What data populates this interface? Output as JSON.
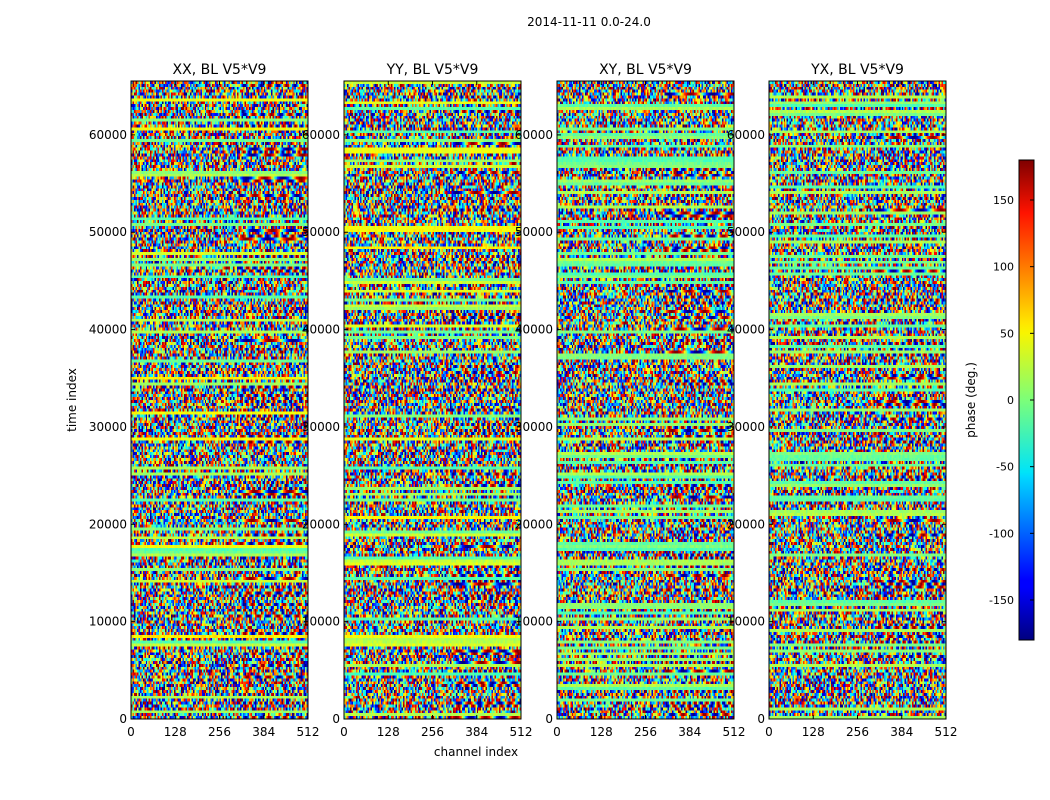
{
  "figure": {
    "suptitle": "2014-11-11 0.0-24.0",
    "xlabel": "channel index",
    "ylabel": "time index",
    "colorbar_label": "phase (deg.)"
  },
  "chart_data": {
    "type": "heatmap",
    "x": {
      "label": "channel index",
      "range": [
        0,
        512
      ],
      "ticks": [
        0,
        128,
        256,
        384,
        512
      ]
    },
    "y": {
      "label": "time index",
      "range": [
        0,
        65536
      ],
      "ticks": [
        0,
        10000,
        20000,
        30000,
        40000,
        50000,
        60000
      ]
    },
    "colorbar": {
      "label": "phase (deg.)",
      "range": [
        -180,
        180
      ],
      "ticks": [
        150,
        100,
        50,
        0,
        -50,
        -100,
        -150
      ],
      "colormap": "jet"
    },
    "panels": [
      {
        "id": "xx",
        "title": "XX, BL V5*V9"
      },
      {
        "id": "yy",
        "title": "YY, BL V5*V9"
      },
      {
        "id": "xy",
        "title": "XY, BL V5*V9"
      },
      {
        "id": "yx",
        "title": "YX, BL V5*V9"
      }
    ],
    "notes": "Phase of visibilities vs channel and time; noisy phase with horizontal bands"
  },
  "colors": {
    "axis": "#000000",
    "background": "#ffffff"
  }
}
